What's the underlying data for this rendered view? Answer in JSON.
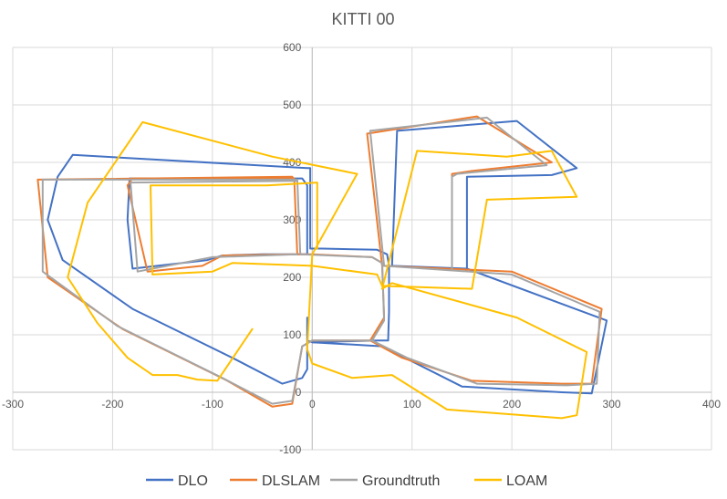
{
  "chart_data": {
    "type": "line",
    "title": "KITTI 00",
    "xlabel": "",
    "ylabel": "",
    "xlim": [
      -300,
      400
    ],
    "ylim": [
      -100,
      600
    ],
    "xticks": [
      -300,
      -200,
      -100,
      0,
      100,
      200,
      300,
      400
    ],
    "yticks": [
      -100,
      0,
      100,
      200,
      300,
      400,
      500,
      600
    ],
    "grid": true,
    "legend_position": "bottom",
    "series": [
      {
        "name": "DLO",
        "color": "#4472C4",
        "points": [
          [
            -5,
            130
          ],
          [
            -5,
            40
          ],
          [
            -10,
            25
          ],
          [
            -30,
            15
          ],
          [
            -80,
            60
          ],
          [
            -180,
            145
          ],
          [
            -250,
            230
          ],
          [
            -265,
            300
          ],
          [
            -255,
            375
          ],
          [
            -240,
            413
          ],
          [
            -5,
            390
          ],
          [
            -2,
            390
          ],
          [
            -2,
            250
          ],
          [
            10,
            250
          ],
          [
            65,
            248
          ],
          [
            75,
            240
          ],
          [
            77,
            220
          ],
          [
            77,
            140
          ],
          [
            76,
            90
          ],
          [
            66,
            90
          ],
          [
            0,
            87
          ],
          [
            -5,
            90
          ],
          [
            -5,
            130
          ]
        ]
      },
      {
        "name": "DLO",
        "color": "#4472C4",
        "points": [
          [
            -5,
            240
          ],
          [
            -50,
            240
          ],
          [
            -90,
            238
          ],
          [
            -105,
            230
          ],
          [
            -180,
            215
          ],
          [
            -185,
            300
          ],
          [
            -183,
            372
          ],
          [
            -10,
            372
          ],
          [
            -5,
            360
          ],
          [
            -5,
            240
          ]
        ]
      },
      {
        "name": "DLO",
        "color": "#4472C4",
        "points": [
          [
            0,
            87
          ],
          [
            70,
            80
          ],
          [
            150,
            10
          ],
          [
            250,
            0
          ],
          [
            280,
            -2
          ],
          [
            295,
            125
          ],
          [
            155,
            215
          ],
          [
            80,
            220
          ],
          [
            85,
            455
          ],
          [
            205,
            472
          ],
          [
            265,
            390
          ],
          [
            240,
            378
          ],
          [
            155,
            375
          ],
          [
            155,
            215
          ]
        ]
      },
      {
        "name": "DLSLAM",
        "color": "#ED7D31",
        "points": [
          [
            -10,
            80
          ],
          [
            -20,
            -20
          ],
          [
            -40,
            -25
          ],
          [
            -85,
            20
          ],
          [
            -190,
            110
          ],
          [
            -265,
            200
          ],
          [
            -275,
            370
          ],
          [
            -20,
            375
          ],
          [
            -18,
            370
          ],
          [
            -15,
            240
          ],
          [
            0,
            240
          ],
          [
            60,
            235
          ],
          [
            70,
            225
          ],
          [
            72,
            130
          ],
          [
            58,
            90
          ],
          [
            0,
            90
          ],
          [
            -10,
            80
          ]
        ]
      },
      {
        "name": "DLSLAM",
        "color": "#ED7D31",
        "points": [
          [
            -18,
            240
          ],
          [
            -90,
            238
          ],
          [
            -110,
            220
          ],
          [
            -165,
            210
          ],
          [
            -185,
            360
          ],
          [
            -180,
            372
          ],
          [
            -18,
            372
          ]
        ]
      },
      {
        "name": "DLSLAM",
        "color": "#ED7D31",
        "points": [
          [
            58,
            90
          ],
          [
            90,
            60
          ],
          [
            160,
            20
          ],
          [
            250,
            15
          ],
          [
            280,
            15
          ],
          [
            290,
            145
          ],
          [
            200,
            210
          ],
          [
            70,
            220
          ],
          [
            55,
            450
          ],
          [
            165,
            480
          ],
          [
            240,
            400
          ],
          [
            160,
            385
          ],
          [
            140,
            380
          ],
          [
            140,
            215
          ]
        ]
      },
      {
        "name": "Groundtruth",
        "color": "#A5A5A5",
        "points": [
          [
            -10,
            80
          ],
          [
            -20,
            -15
          ],
          [
            -40,
            -20
          ],
          [
            -90,
            25
          ],
          [
            -195,
            115
          ],
          [
            -270,
            210
          ],
          [
            -270,
            370
          ],
          [
            -15,
            370
          ],
          [
            -12,
            240
          ],
          [
            60,
            235
          ],
          [
            70,
            225
          ],
          [
            72,
            125
          ],
          [
            60,
            90
          ],
          [
            0,
            90
          ],
          [
            -10,
            80
          ]
        ]
      },
      {
        "name": "Groundtruth",
        "color": "#A5A5A5",
        "points": [
          [
            -15,
            240
          ],
          [
            -100,
            235
          ],
          [
            -175,
            210
          ],
          [
            -182,
            365
          ],
          [
            -15,
            368
          ]
        ]
      },
      {
        "name": "Groundtruth",
        "color": "#A5A5A5",
        "points": [
          [
            60,
            90
          ],
          [
            95,
            60
          ],
          [
            165,
            15
          ],
          [
            255,
            12
          ],
          [
            285,
            15
          ],
          [
            288,
            140
          ],
          [
            200,
            205
          ],
          [
            72,
            220
          ],
          [
            58,
            455
          ],
          [
            175,
            478
          ],
          [
            235,
            395
          ],
          [
            145,
            380
          ],
          [
            140,
            375
          ],
          [
            140,
            215
          ]
        ]
      },
      {
        "name": "LOAM",
        "color": "#FFC000",
        "points": [
          [
            -60,
            110
          ],
          [
            -95,
            20
          ],
          [
            -115,
            22
          ],
          [
            -135,
            30
          ],
          [
            -160,
            30
          ],
          [
            -185,
            60
          ],
          [
            -215,
            120
          ],
          [
            -245,
            200
          ],
          [
            -225,
            330
          ],
          [
            -170,
            470
          ],
          [
            -40,
            410
          ],
          [
            45,
            380
          ],
          [
            0,
            240
          ],
          [
            -5,
            75
          ],
          [
            0,
            50
          ],
          [
            40,
            25
          ],
          [
            80,
            30
          ],
          [
            135,
            -30
          ],
          [
            250,
            -45
          ],
          [
            265,
            -40
          ],
          [
            275,
            70
          ],
          [
            205,
            130
          ],
          [
            80,
            190
          ],
          [
            70,
            180
          ],
          [
            105,
            420
          ],
          [
            195,
            410
          ],
          [
            240,
            420
          ],
          [
            265,
            340
          ],
          [
            175,
            335
          ],
          [
            160,
            180
          ],
          [
            70,
            185
          ],
          [
            65,
            205
          ],
          [
            0,
            220
          ],
          [
            -80,
            225
          ],
          [
            -100,
            210
          ],
          [
            -160,
            205
          ],
          [
            -162,
            360
          ],
          [
            -45,
            360
          ],
          [
            5,
            365
          ],
          [
            5,
            250
          ]
        ]
      }
    ]
  }
}
